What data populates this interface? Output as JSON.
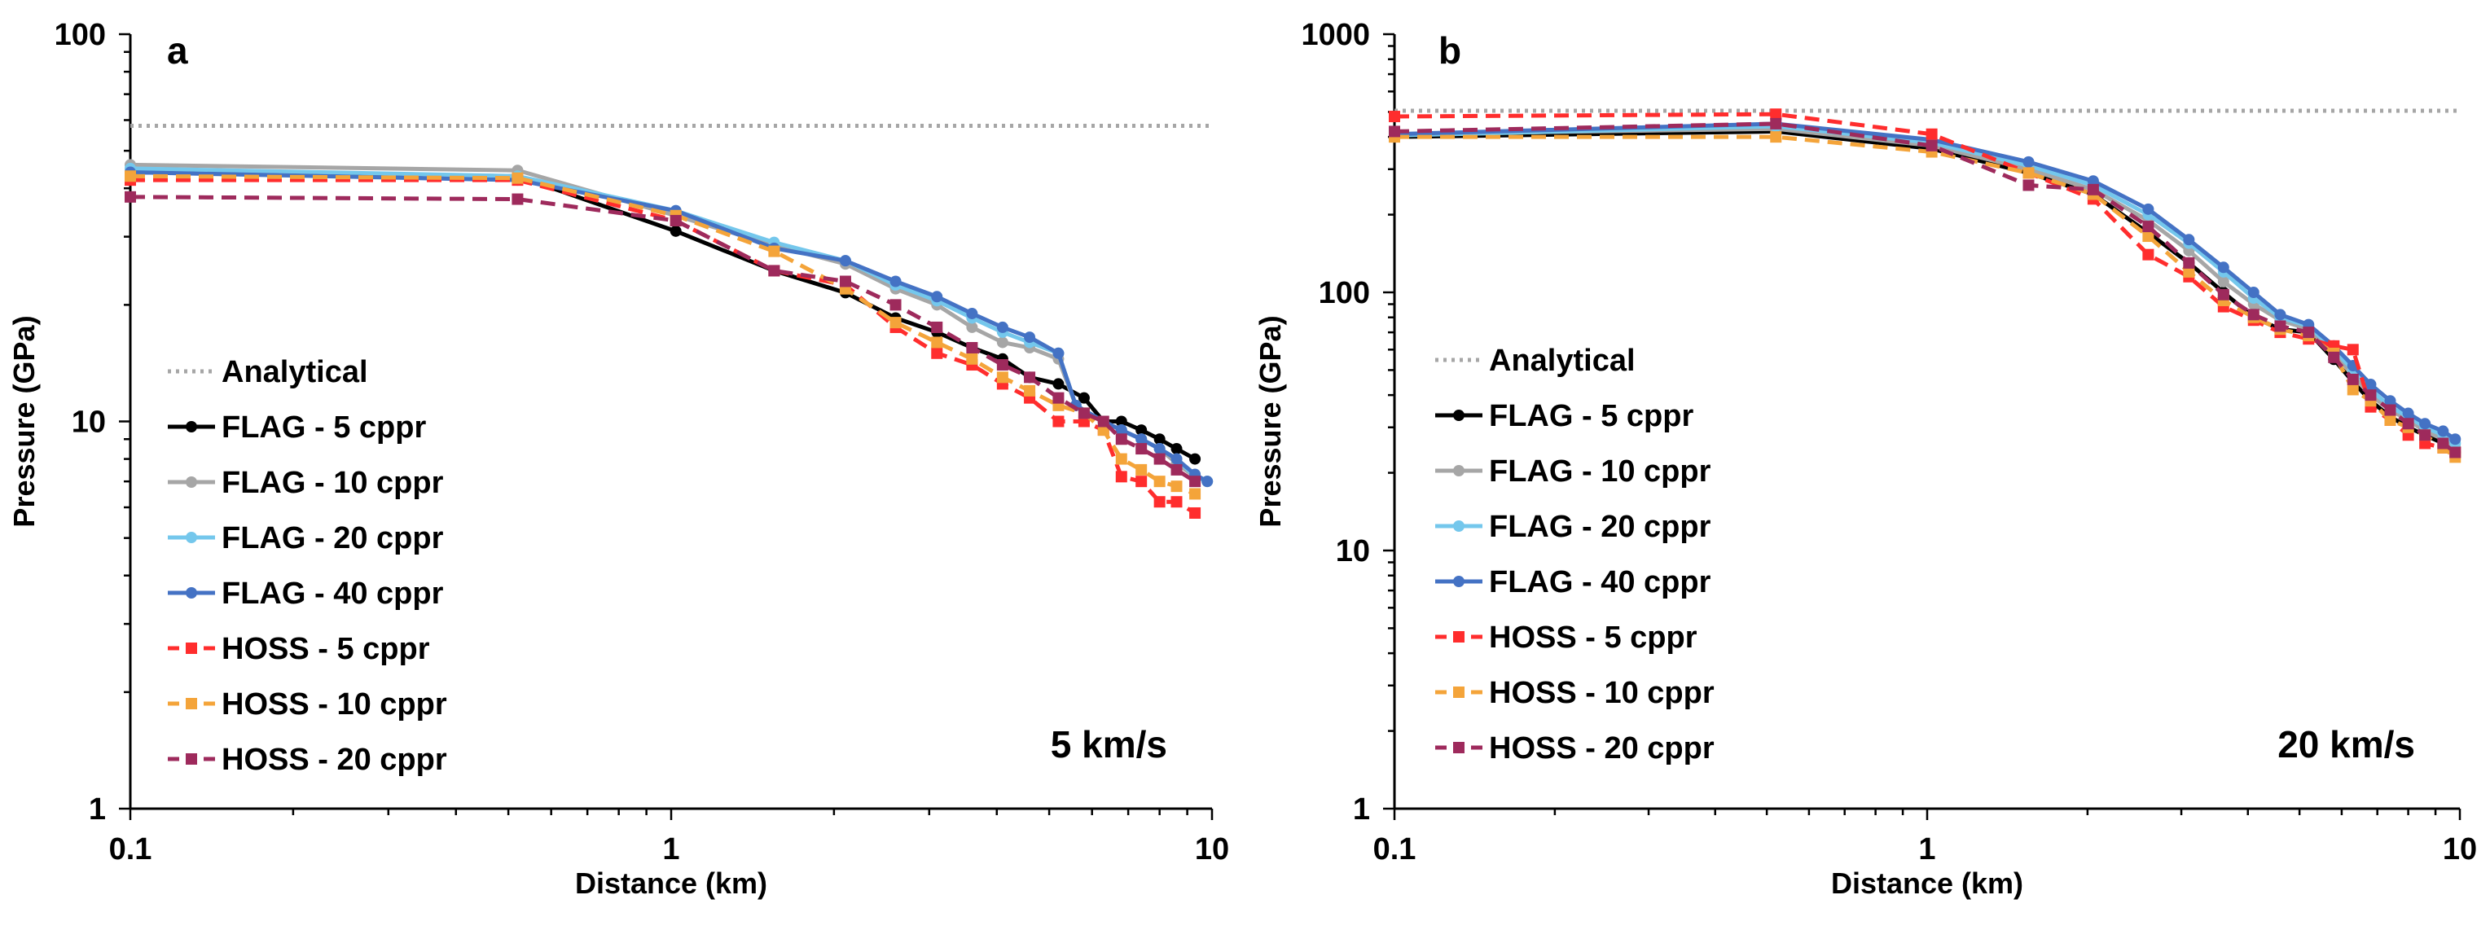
{
  "chart_data": [
    {
      "type": "line",
      "panel": "a",
      "annotation": "5 km/s",
      "xscale": "log",
      "yscale": "log",
      "xlim": [
        0.1,
        10
      ],
      "ylim": [
        1,
        100
      ],
      "xticks": [
        "0.1",
        "1",
        "10"
      ],
      "yticks": [
        "1",
        "10",
        "100"
      ],
      "xlabel": "Distance (km)",
      "ylabel": "Pressure (GPa)",
      "legend_position": "left",
      "series": [
        {
          "name": "Analytical",
          "color": "#a6a6a6",
          "style": "dotted",
          "marker": "none",
          "x": [
            0.1,
            10
          ],
          "y": [
            58,
            58
          ]
        },
        {
          "name": "FLAG - 5 cppr",
          "color": "#000000",
          "style": "solid",
          "marker": "circle",
          "x": [
            0.1,
            0.52,
            1.02,
            1.55,
            2.1,
            2.6,
            3.1,
            3.6,
            4.1,
            4.6,
            5.2,
            5.8,
            6.3,
            6.8,
            7.4,
            8.0,
            8.6,
            9.3
          ],
          "y": [
            44,
            43,
            31,
            24.5,
            21.5,
            18.5,
            17,
            15.5,
            14.5,
            13,
            12.5,
            11.5,
            10,
            10,
            9.5,
            9,
            8.5,
            8
          ]
        },
        {
          "name": "FLAG - 10 cppr",
          "color": "#a6a6a6",
          "style": "solid",
          "marker": "circle",
          "x": [
            0.1,
            0.52,
            1.02,
            1.55,
            2.1,
            2.6,
            3.1,
            3.6,
            4.1,
            4.6,
            5.2,
            5.6,
            6.3,
            6.8,
            7.4,
            8.0,
            8.6,
            9.3,
            9.8
          ],
          "y": [
            46,
            44.5,
            34,
            28.5,
            25.5,
            22,
            20,
            17.5,
            16,
            15.5,
            14.5,
            11,
            10,
            9.5,
            9,
            8.5,
            7.8,
            7.2,
            7
          ]
        },
        {
          "name": "FLAG - 20 cppr",
          "color": "#74c7ec",
          "style": "solid",
          "marker": "circle",
          "x": [
            0.1,
            0.52,
            1.02,
            1.55,
            2.1,
            2.6,
            3.1,
            3.6,
            4.1,
            4.6,
            5.2,
            5.6,
            6.3,
            6.8,
            7.4,
            8.0,
            8.6,
            9.3,
            9.8
          ],
          "y": [
            45,
            43,
            35,
            29,
            26,
            22.5,
            20.5,
            18.5,
            17,
            16,
            15,
            11,
            10,
            9.5,
            9,
            8.5,
            8,
            7.2,
            7
          ]
        },
        {
          "name": "FLAG - 40 cppr",
          "color": "#4472c4",
          "style": "solid",
          "marker": "circle",
          "x": [
            0.1,
            0.52,
            1.02,
            1.55,
            2.1,
            2.6,
            3.1,
            3.6,
            4.1,
            4.6,
            5.2,
            5.6,
            6.3,
            6.8,
            7.4,
            8.0,
            8.6,
            9.3,
            9.8
          ],
          "y": [
            44,
            42,
            35,
            28,
            26,
            23,
            21,
            19,
            17.5,
            16.5,
            15,
            11,
            10,
            9.5,
            9,
            8.5,
            8,
            7.3,
            7
          ]
        },
        {
          "name": "HOSS - 5 cppr",
          "color": "#ff2d2d",
          "style": "dashed",
          "marker": "square",
          "x": [
            0.1,
            0.52,
            1.02,
            1.55,
            2.1,
            2.6,
            3.1,
            3.6,
            4.1,
            4.6,
            5.2,
            5.8,
            6.3,
            6.8,
            7.4,
            8.0,
            8.6,
            9.3
          ],
          "y": [
            42,
            42,
            33,
            24.5,
            22.5,
            17.5,
            15,
            14,
            12.5,
            11.5,
            10,
            10,
            9.5,
            7.2,
            7,
            6.2,
            6.2,
            5.8
          ]
        },
        {
          "name": "HOSS - 10 cppr",
          "color": "#f4a43a",
          "style": "dashed",
          "marker": "square",
          "x": [
            0.1,
            0.52,
            1.02,
            1.55,
            2.1,
            2.6,
            3.1,
            3.6,
            4.1,
            4.6,
            5.2,
            5.8,
            6.3,
            6.8,
            7.4,
            8.0,
            8.6,
            9.3
          ],
          "y": [
            43,
            42.5,
            34,
            27.5,
            22,
            18,
            16,
            14.5,
            13,
            12,
            11,
            10.5,
            9.5,
            8,
            7.5,
            7,
            6.8,
            6.5
          ]
        },
        {
          "name": "HOSS - 20 cppr",
          "color": "#9e2a5c",
          "style": "dashed",
          "marker": "square",
          "x": [
            0.1,
            0.52,
            1.02,
            1.55,
            2.1,
            2.6,
            3.1,
            3.6,
            4.1,
            4.6,
            5.2,
            5.8,
            6.3,
            6.8,
            7.4,
            8.0,
            8.6,
            9.3
          ],
          "y": [
            38,
            37.5,
            33,
            24.5,
            23,
            20,
            17.5,
            15.5,
            14,
            13,
            11.5,
            10.5,
            10,
            9,
            8.5,
            8,
            7.5,
            7
          ]
        }
      ]
    },
    {
      "type": "line",
      "panel": "b",
      "annotation": "20 km/s",
      "xscale": "log",
      "yscale": "log",
      "xlim": [
        0.1,
        10
      ],
      "ylim": [
        1,
        1000
      ],
      "xticks": [
        "0.1",
        "1",
        "10"
      ],
      "yticks": [
        "1",
        "10",
        "100",
        "1000"
      ],
      "xlabel": "Distance (km)",
      "ylabel": "Pressure (GPa)",
      "legend_position": "left",
      "series": [
        {
          "name": "Analytical",
          "color": "#a6a6a6",
          "style": "dotted",
          "marker": "none",
          "x": [
            0.1,
            10
          ],
          "y": [
            505,
            505
          ]
        },
        {
          "name": "FLAG - 5 cppr",
          "color": "#000000",
          "style": "solid",
          "marker": "circle",
          "x": [
            0.1,
            0.52,
            1.02,
            1.55,
            2.05,
            2.6,
            3.1,
            3.6,
            4.1,
            4.6,
            5.2,
            5.8,
            6.3,
            6.8,
            7.4,
            8.0,
            8.6,
            9.3,
            9.8
          ],
          "y": [
            400,
            420,
            360,
            290,
            240,
            170,
            130,
            100,
            80,
            72,
            70,
            55,
            45,
            38,
            33,
            30,
            28,
            26,
            24
          ]
        },
        {
          "name": "FLAG - 10 cppr",
          "color": "#a6a6a6",
          "style": "solid",
          "marker": "circle",
          "x": [
            0.1,
            0.52,
            1.02,
            1.55,
            2.05,
            2.6,
            3.1,
            3.6,
            4.1,
            4.6,
            5.2,
            5.8,
            6.3,
            6.8,
            7.4,
            8.0,
            8.6,
            9.3,
            9.8
          ],
          "y": [
            410,
            430,
            370,
            300,
            250,
            190,
            145,
            110,
            90,
            78,
            72,
            58,
            48,
            40,
            35,
            32,
            29,
            27,
            25
          ]
        },
        {
          "name": "FLAG - 20 cppr",
          "color": "#74c7ec",
          "style": "solid",
          "marker": "circle",
          "x": [
            0.1,
            0.52,
            1.02,
            1.55,
            2.05,
            2.6,
            3.1,
            3.6,
            4.1,
            4.6,
            5.2,
            5.8,
            6.3,
            6.8,
            7.4,
            8.0,
            8.6,
            9.3,
            9.8
          ],
          "y": [
            405,
            440,
            380,
            310,
            260,
            200,
            155,
            120,
            95,
            80,
            74,
            60,
            50,
            42,
            36,
            33,
            30,
            28,
            26
          ]
        },
        {
          "name": "FLAG - 40 cppr",
          "color": "#4472c4",
          "style": "solid",
          "marker": "circle",
          "x": [
            0.1,
            0.52,
            1.02,
            1.55,
            2.05,
            2.6,
            3.1,
            3.6,
            4.1,
            4.6,
            5.2,
            5.8,
            6.3,
            6.8,
            7.4,
            8.0,
            8.6,
            9.3,
            9.8
          ],
          "y": [
            410,
            450,
            390,
            320,
            270,
            210,
            160,
            125,
            100,
            82,
            75,
            62,
            52,
            44,
            38,
            34,
            31,
            29,
            27
          ]
        },
        {
          "name": "HOSS - 5 cppr",
          "color": "#ff2d2d",
          "style": "dashed",
          "marker": "square",
          "x": [
            0.1,
            0.52,
            1.02,
            1.55,
            2.05,
            2.6,
            3.1,
            3.6,
            4.1,
            4.6,
            5.2,
            5.8,
            6.3,
            6.8,
            7.4,
            8.0,
            8.6,
            9.3,
            9.8
          ],
          "y": [
            480,
            490,
            410,
            290,
            230,
            140,
            115,
            88,
            78,
            70,
            66,
            62,
            60,
            36,
            32,
            28,
            26,
            25,
            24
          ]
        },
        {
          "name": "HOSS - 10 cppr",
          "color": "#f4a43a",
          "style": "dashed",
          "marker": "square",
          "x": [
            0.1,
            0.52,
            1.02,
            1.55,
            2.05,
            2.6,
            3.1,
            3.6,
            4.1,
            4.6,
            5.2,
            5.8,
            6.3,
            6.8,
            7.4,
            8.0,
            8.6,
            9.3,
            9.8
          ],
          "y": [
            400,
            400,
            350,
            290,
            240,
            165,
            120,
            93,
            80,
            72,
            68,
            58,
            42,
            38,
            32,
            30,
            28,
            25,
            23
          ]
        },
        {
          "name": "HOSS - 20 cppr",
          "color": "#9e2a5c",
          "style": "dashed",
          "marker": "square",
          "x": [
            0.1,
            0.52,
            1.02,
            1.55,
            2.05,
            2.6,
            3.1,
            3.6,
            4.1,
            4.6,
            5.2,
            5.8,
            6.3,
            6.8,
            7.4,
            8.0,
            8.6,
            9.3,
            9.8
          ],
          "y": [
            420,
            450,
            370,
            260,
            250,
            180,
            130,
            98,
            82,
            74,
            70,
            56,
            46,
            40,
            35,
            31,
            28,
            26,
            24
          ]
        }
      ]
    }
  ]
}
